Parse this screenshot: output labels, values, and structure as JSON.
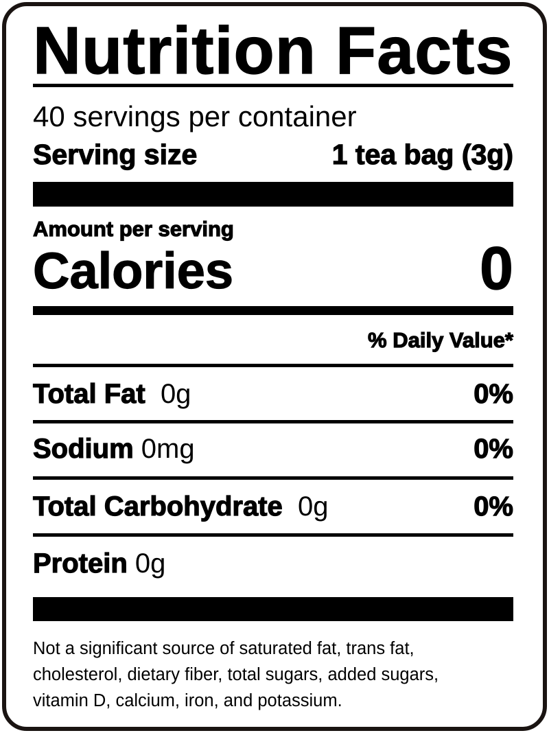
{
  "title": "Nutrition Facts",
  "servings_per_container": "40 servings per container",
  "serving_size": {
    "label": "Serving size",
    "value": "1 tea bag (3g)"
  },
  "amount_per_serving": "Amount per serving",
  "calories": {
    "label": "Calories",
    "value": "0"
  },
  "daily_value_header": "% Daily Value*",
  "nutrients": [
    {
      "name": "Total Fat",
      "amount": "0g",
      "dv": "0%"
    },
    {
      "name": "Sodium",
      "amount": "0mg",
      "dv": "0%"
    },
    {
      "name": "Total Carbohydrate",
      "amount": "0g",
      "dv": "0%"
    },
    {
      "name": "Protein",
      "amount": "0g",
      "dv": ""
    }
  ],
  "footnote": [
    "Not a significant source of saturated fat, trans fat,",
    "cholesterol, dietary fiber, total sugars, added sugars,",
    "vitamin D, calcium, iron, and potassium."
  ]
}
